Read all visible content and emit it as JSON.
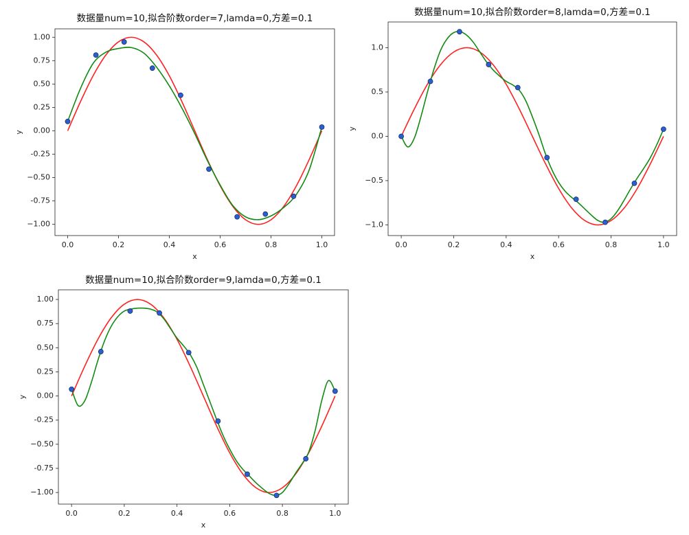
{
  "chart_data": [
    {
      "type": "line",
      "title": "数据量num=10,拟合阶数order=7,lamda=0,方差=0.1",
      "xlabel": "x",
      "ylabel": "y",
      "xlim": [
        -0.05,
        1.05
      ],
      "ylim": [
        -1.12,
        1.09
      ],
      "xticks": [
        {
          "value": 0,
          "label": "0.0"
        },
        0.2,
        0.4,
        0.6,
        0.8,
        {
          "value": 1,
          "label": "1.0"
        }
      ],
      "yticks": [
        {
          "value": -1,
          "label": "−1.00"
        },
        -0.75,
        {
          "value": -0.5,
          "label": "−0.50"
        },
        -0.25,
        {
          "value": 0,
          "label": "0.00"
        },
        0.25,
        {
          "value": 0.5,
          "label": "0.50"
        },
        0.75,
        {
          "value": 1,
          "label": "1.00"
        }
      ],
      "series": [
        {
          "kind": "line",
          "color": "#ff2020",
          "x": [
            0,
            0.05,
            0.1,
            0.15,
            0.2,
            0.25,
            0.3,
            0.35,
            0.4,
            0.45,
            0.5,
            0.55,
            0.6,
            0.65,
            0.7,
            0.75,
            0.8,
            0.85,
            0.9,
            0.95,
            1
          ],
          "values": [
            0,
            0.309,
            0.588,
            0.809,
            0.951,
            1,
            0.951,
            0.809,
            0.588,
            0.309,
            0,
            -0.309,
            -0.588,
            -0.809,
            -0.951,
            -1,
            -0.951,
            -0.809,
            -0.588,
            -0.309,
            0
          ]
        },
        {
          "kind": "line",
          "color": "#108a10",
          "x": [
            0,
            0.05,
            0.1,
            0.15,
            0.2,
            0.25,
            0.3,
            0.35,
            0.4,
            0.45,
            0.5,
            0.55,
            0.6,
            0.65,
            0.7,
            0.75,
            0.8,
            0.85,
            0.9,
            0.95,
            1
          ],
          "values": [
            0.1,
            0.45,
            0.72,
            0.84,
            0.88,
            0.89,
            0.83,
            0.68,
            0.48,
            0.24,
            -0.03,
            -0.32,
            -0.58,
            -0.8,
            -0.92,
            -0.95,
            -0.91,
            -0.82,
            -0.68,
            -0.42,
            0.04
          ]
        },
        {
          "kind": "scatter",
          "color": "#2a5fcf",
          "x": [
            0,
            0.1111,
            0.2222,
            0.3333,
            0.4444,
            0.5556,
            0.6667,
            0.7778,
            0.8889,
            1
          ],
          "values": [
            0.1,
            0.81,
            0.95,
            0.67,
            0.38,
            -0.41,
            -0.92,
            -0.89,
            -0.7,
            0.04
          ]
        }
      ]
    },
    {
      "type": "line",
      "title": "数据量num=10,拟合阶数order=8,lamda=0,方差=0.1",
      "xlabel": "x",
      "ylabel": "y",
      "xlim": [
        -0.05,
        1.05
      ],
      "ylim": [
        -1.12,
        1.29
      ],
      "xticks": [
        {
          "value": 0,
          "label": "0.0"
        },
        0.2,
        0.4,
        0.6,
        0.8,
        {
          "value": 1,
          "label": "1.0"
        }
      ],
      "yticks": [
        {
          "value": -1,
          "label": "−1.0"
        },
        {
          "value": -0.5,
          "label": "−0.5"
        },
        {
          "value": 0,
          "label": "0.0"
        },
        0.5,
        {
          "value": 1,
          "label": "1.0"
        }
      ],
      "series": [
        {
          "kind": "line",
          "color": "#ff2020",
          "x": [
            0,
            0.05,
            0.1,
            0.15,
            0.2,
            0.25,
            0.3,
            0.35,
            0.4,
            0.45,
            0.5,
            0.55,
            0.6,
            0.65,
            0.7,
            0.75,
            0.8,
            0.85,
            0.9,
            0.95,
            1
          ],
          "values": [
            0,
            0.309,
            0.588,
            0.809,
            0.951,
            1,
            0.951,
            0.809,
            0.588,
            0.309,
            0,
            -0.309,
            -0.588,
            -0.809,
            -0.951,
            -1,
            -0.951,
            -0.809,
            -0.588,
            -0.309,
            0
          ]
        },
        {
          "kind": "line",
          "color": "#108a10",
          "x": [
            0,
            0.025,
            0.05,
            0.075,
            0.1,
            0.125,
            0.15,
            0.175,
            0.2,
            0.225,
            0.25,
            0.275,
            0.3,
            0.325,
            0.35,
            0.375,
            0.4,
            0.425,
            0.45,
            0.475,
            0.5,
            0.525,
            0.55,
            0.575,
            0.6,
            0.625,
            0.65,
            0.675,
            0.7,
            0.725,
            0.75,
            0.775,
            0.8,
            0.825,
            0.85,
            0.875,
            0.9,
            0.925,
            0.95,
            0.975,
            1
          ],
          "values": [
            0,
            -0.12,
            -0.02,
            0.22,
            0.5,
            0.76,
            0.97,
            1.1,
            1.17,
            1.18,
            1.14,
            1.06,
            0.95,
            0.84,
            0.75,
            0.68,
            0.62,
            0.58,
            0.52,
            0.4,
            0.22,
            0.02,
            -0.2,
            -0.38,
            -0.52,
            -0.62,
            -0.69,
            -0.75,
            -0.82,
            -0.89,
            -0.95,
            -0.97,
            -0.93,
            -0.84,
            -0.72,
            -0.59,
            -0.47,
            -0.36,
            -0.24,
            -0.09,
            0.08
          ]
        },
        {
          "kind": "scatter",
          "color": "#2a5fcf",
          "x": [
            0,
            0.1111,
            0.2222,
            0.3333,
            0.4444,
            0.5556,
            0.6667,
            0.7778,
            0.8889,
            1
          ],
          "values": [
            0,
            0.62,
            1.18,
            0.81,
            0.55,
            -0.24,
            -0.71,
            -0.97,
            -0.53,
            0.08
          ]
        }
      ]
    },
    {
      "type": "line",
      "title": "数据量num=10,拟合阶数order=9,lamda=0,方差=0.1",
      "xlabel": "x",
      "ylabel": "y",
      "xlim": [
        -0.05,
        1.05
      ],
      "ylim": [
        -1.12,
        1.1
      ],
      "xticks": [
        {
          "value": 0,
          "label": "0.0"
        },
        0.2,
        0.4,
        0.6,
        0.8,
        {
          "value": 1,
          "label": "1.0"
        }
      ],
      "yticks": [
        {
          "value": -1,
          "label": "−1.00"
        },
        -0.75,
        {
          "value": -0.5,
          "label": "−0.50"
        },
        -0.25,
        {
          "value": 0,
          "label": "0.00"
        },
        0.25,
        {
          "value": 0.5,
          "label": "0.50"
        },
        0.75,
        {
          "value": 1,
          "label": "1.00"
        }
      ],
      "series": [
        {
          "kind": "line",
          "color": "#ff2020",
          "x": [
            0,
            0.05,
            0.1,
            0.15,
            0.2,
            0.25,
            0.3,
            0.35,
            0.4,
            0.45,
            0.5,
            0.55,
            0.6,
            0.65,
            0.7,
            0.75,
            0.8,
            0.85,
            0.9,
            0.95,
            1
          ],
          "values": [
            0,
            0.309,
            0.588,
            0.809,
            0.951,
            1,
            0.951,
            0.809,
            0.588,
            0.309,
            0,
            -0.309,
            -0.588,
            -0.809,
            -0.951,
            -1,
            -0.951,
            -0.809,
            -0.588,
            -0.309,
            0
          ]
        },
        {
          "kind": "line",
          "color": "#108a10",
          "x": [
            0,
            0.025,
            0.05,
            0.075,
            0.1,
            0.125,
            0.15,
            0.175,
            0.2,
            0.225,
            0.25,
            0.275,
            0.3,
            0.325,
            0.35,
            0.375,
            0.4,
            0.425,
            0.45,
            0.475,
            0.5,
            0.525,
            0.55,
            0.575,
            0.6,
            0.625,
            0.65,
            0.675,
            0.7,
            0.725,
            0.75,
            0.775,
            0.8,
            0.825,
            0.85,
            0.875,
            0.9,
            0.925,
            0.95,
            0.975,
            1
          ],
          "values": [
            0.07,
            -0.1,
            -0.05,
            0.14,
            0.37,
            0.57,
            0.72,
            0.82,
            0.88,
            0.9,
            0.91,
            0.91,
            0.9,
            0.87,
            0.8,
            0.7,
            0.6,
            0.52,
            0.43,
            0.3,
            0.12,
            -0.06,
            -0.24,
            -0.41,
            -0.55,
            -0.67,
            -0.76,
            -0.83,
            -0.9,
            -0.96,
            -1.01,
            -1.03,
            -1,
            -0.91,
            -0.8,
            -0.7,
            -0.58,
            -0.35,
            -0.04,
            0.16,
            0.05
          ]
        },
        {
          "kind": "scatter",
          "color": "#2a5fcf",
          "x": [
            0,
            0.1111,
            0.2222,
            0.3333,
            0.4444,
            0.5556,
            0.6667,
            0.7778,
            0.8889,
            1
          ],
          "values": [
            0.07,
            0.46,
            0.88,
            0.86,
            0.45,
            -0.26,
            -0.81,
            -1.03,
            -0.65,
            0.05
          ]
        }
      ]
    }
  ]
}
